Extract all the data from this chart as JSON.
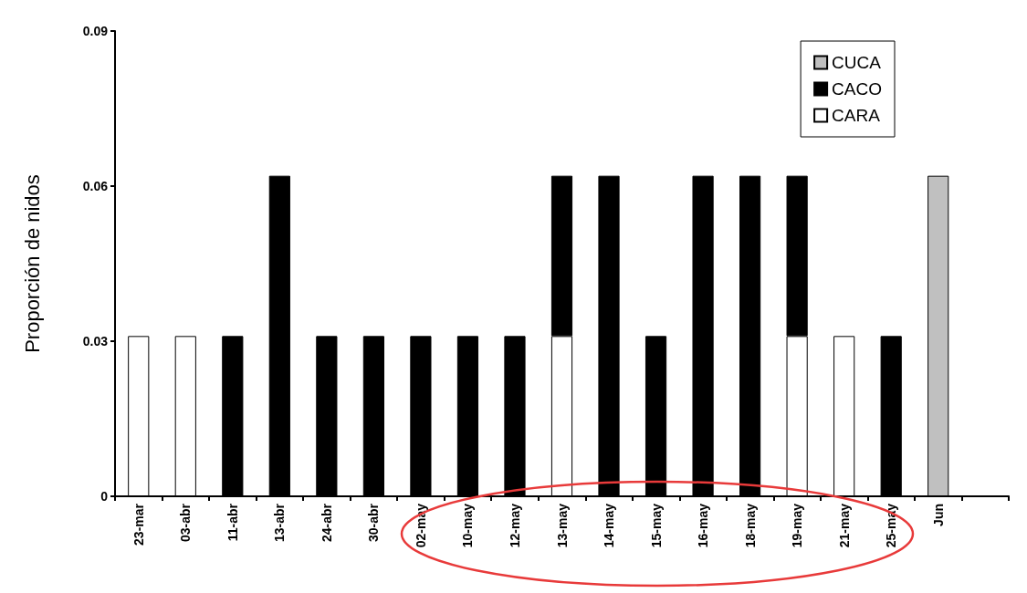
{
  "chart_data": {
    "type": "bar",
    "ylabel": "Proporción de nidos",
    "stacked": true,
    "grid": false,
    "legend": "top right",
    "categories": [
      "23-mar",
      "03-abr",
      "11-abr",
      "13-abr",
      "24-abr",
      "30-abr",
      "02-may",
      "10-may",
      "12-may",
      "13-may",
      "14-may",
      "15-may",
      "16-may",
      "18-may",
      "19-may",
      "21-may",
      "25-may",
      "Jun",
      null
    ],
    "series": [
      {
        "name": "CARA",
        "color": "#ffffff",
        "values": [
          0.031,
          0.031,
          null,
          null,
          null,
          null,
          null,
          null,
          null,
          0.031,
          null,
          null,
          null,
          null,
          0.031,
          0.031,
          null,
          null,
          null
        ]
      },
      {
        "name": "CACO",
        "color": "#000000",
        "values": [
          null,
          null,
          0.031,
          0.062,
          0.031,
          0.031,
          0.031,
          0.031,
          0.031,
          0.031,
          0.062,
          0.031,
          0.062,
          0.062,
          0.031,
          null,
          0.031,
          null,
          null
        ]
      },
      {
        "name": "CUCA",
        "color": "#c0c0c0",
        "values": [
          null,
          null,
          null,
          null,
          null,
          null,
          null,
          null,
          null,
          null,
          null,
          null,
          null,
          null,
          null,
          null,
          null,
          0.062,
          null
        ]
      }
    ],
    "ylim": [
      0,
      0.09
    ],
    "yticks": [
      0,
      0.03,
      0.06,
      0.09
    ]
  }
}
